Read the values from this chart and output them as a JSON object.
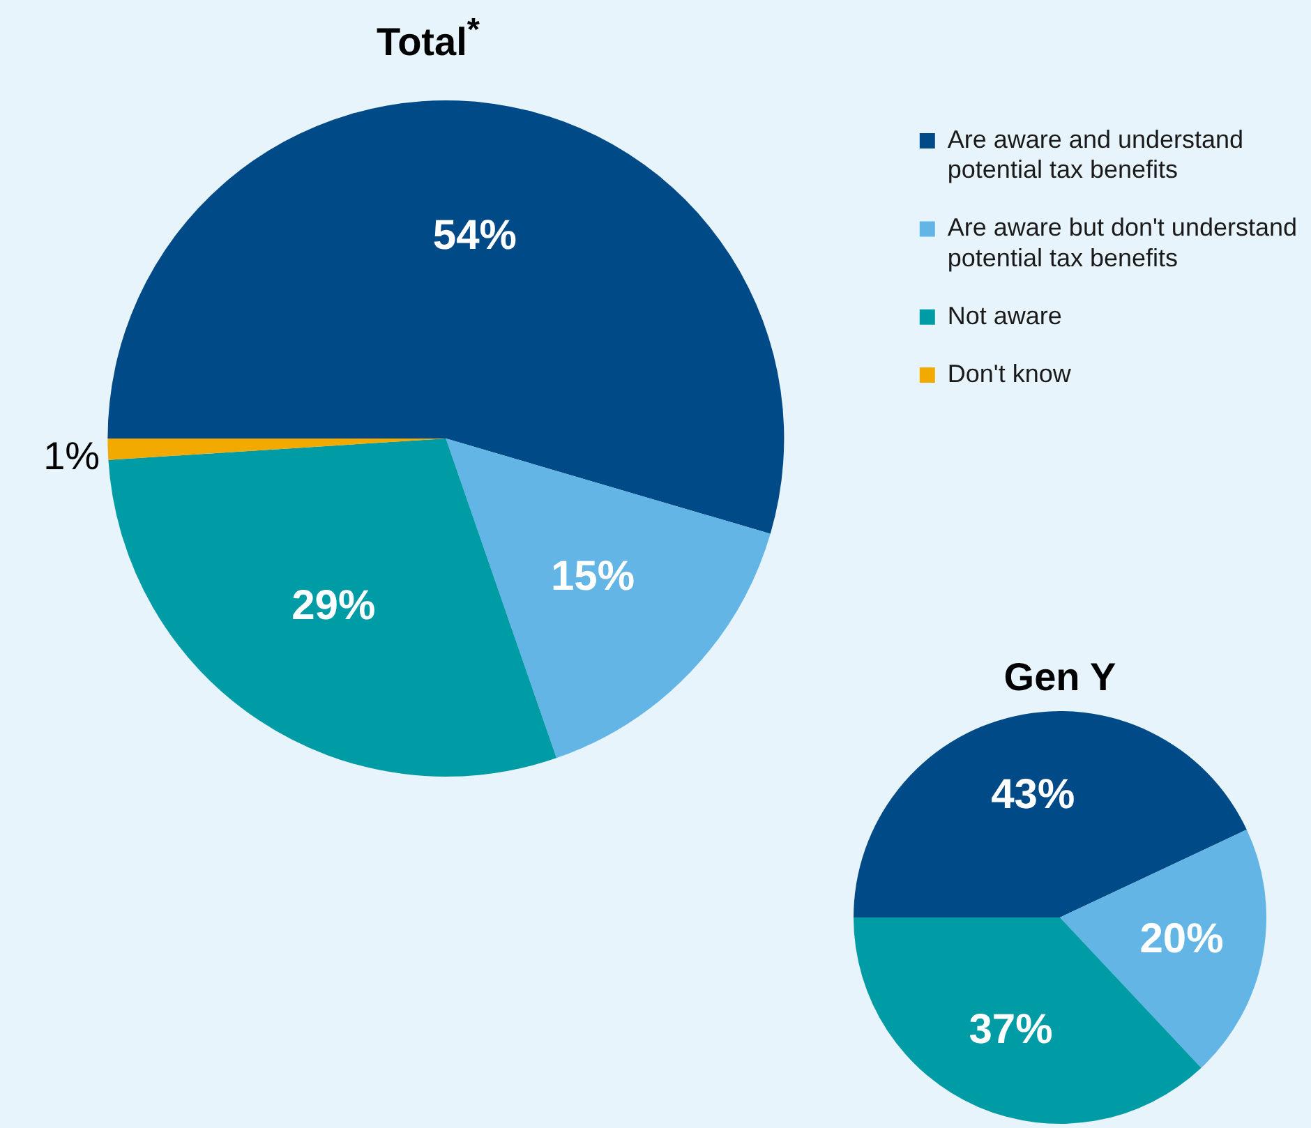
{
  "chart_data": [
    {
      "type": "pie",
      "title": "Total$^{*}$",
      "categories": [
        "Are aware and understand potential tax benefits",
        "Are aware but don't understand potential tax benefits",
        "Not aware",
        "Don't know"
      ],
      "values": [
        54,
        15,
        29,
        1
      ],
      "value_labels": [
        "54%",
        "15%",
        "29%",
        "1%"
      ],
      "colors": [
        "#004b87",
        "#62b5e5",
        "#009ca6",
        "#f2a900"
      ],
      "legend": "right"
    },
    {
      "type": "pie",
      "title": "Gen Y",
      "categories": [
        null,
        null,
        null
      ],
      "values": [
        43,
        20,
        37
      ],
      "value_labels": [
        "43%",
        "20%",
        "37%"
      ],
      "colors": [
        "#004b87",
        "#62b5e5",
        "#009ca6"
      ],
      "legend": false
    }
  ]
}
